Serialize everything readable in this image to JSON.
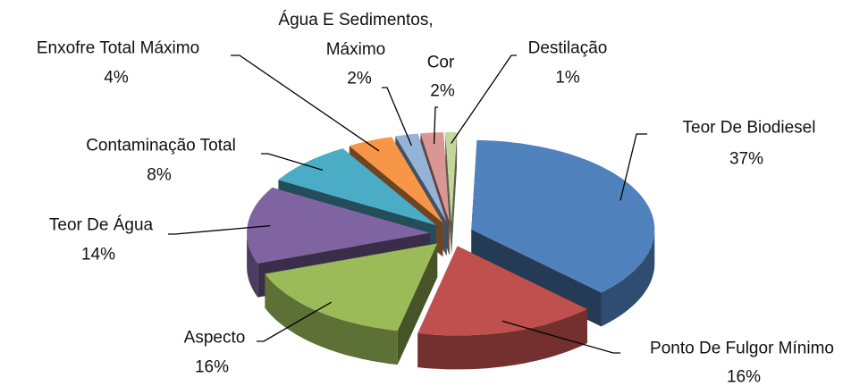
{
  "chart_data": {
    "type": "pie3d",
    "categories": [
      "Teor De Biodiesel",
      "Ponto De Fulgor Mínimo",
      "Aspecto",
      "Teor De Água",
      "Contaminação Total",
      "Enxofre Total Máximo",
      "Água E Sedimentos, Máximo",
      "Cor",
      "Destilação"
    ],
    "values": [
      37,
      16,
      16,
      14,
      8,
      4,
      2,
      2,
      1
    ],
    "value_labels": [
      "37%",
      "16%",
      "16%",
      "14%",
      "8%",
      "4%",
      "2%",
      "2%",
      "1%"
    ],
    "colors": [
      "#4f81bd",
      "#c0504d",
      "#9bbb59",
      "#8064a2",
      "#4bacc6",
      "#f79646",
      "#95b3d7",
      "#d99694",
      "#c3d69b"
    ]
  }
}
